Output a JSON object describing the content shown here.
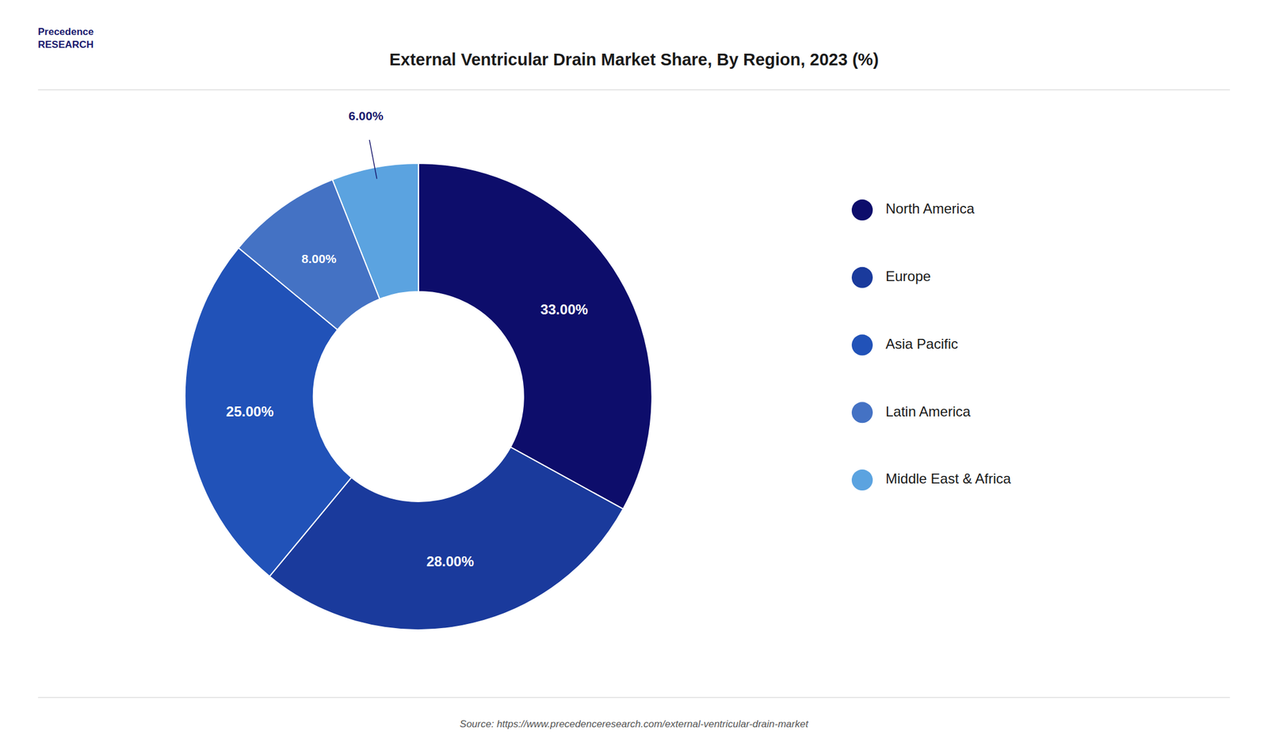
{
  "chart_data": {
    "type": "pie",
    "title": "External Ventricular Drain Market Share, By Region, 2023 (%)",
    "categories": [
      "North America",
      "Europe",
      "Asia Pacific",
      "Latin America",
      "Middle East & Africa"
    ],
    "values": [
      33.0,
      28.0,
      25.0,
      8.0,
      6.0
    ],
    "value_labels": [
      "33.00%",
      "28.00%",
      "25.00%",
      "8.00%",
      "6.00%"
    ],
    "colors": [
      "#0d0d6b",
      "#1a3a9c",
      "#2152b8",
      "#4472c4",
      "#5ba3e0"
    ],
    "data_labels": true,
    "legend": "right",
    "annotations": [
      "Precedence",
      "RESEARCH",
      "Source: https://www.precedenceresearch.com/external-ventricular-drain-market"
    ]
  }
}
